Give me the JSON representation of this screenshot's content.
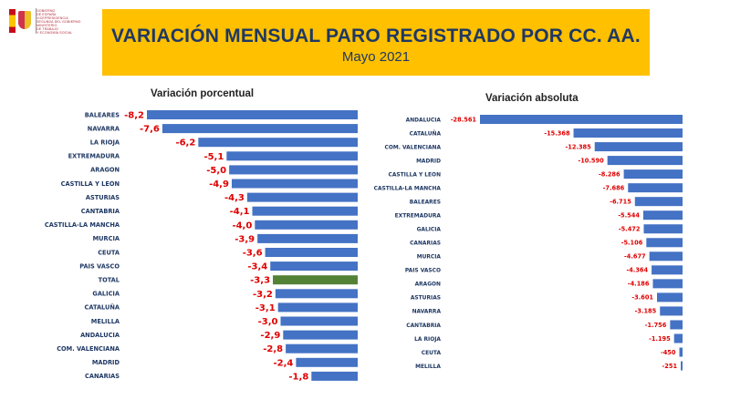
{
  "header": {
    "title": "VARIACIÓN MENSUAL PARO REGISTRADO POR CC. AA.",
    "subtitle": "Mayo 2021",
    "logo_lines": [
      "GOBIERNO",
      "DE ESPAÑA",
      "VICEPRESIDENCIA",
      "SEGUNDA DEL GOBIERNO",
      "MINISTERIO",
      "DE TRABAJO",
      "Y ECONOMÍA SOCIAL"
    ]
  },
  "colors": {
    "banner": "#ffc000",
    "bar": "#4472c4",
    "highlight": "#548235",
    "value_label": "#e00000",
    "category_label": "#1f3864"
  },
  "chart_data": [
    {
      "type": "bar",
      "orientation": "horizontal",
      "title": "Variación porcentual",
      "highlight_category": "TOTAL",
      "categories": [
        "BALEARES",
        "NAVARRA",
        "LA RIOJA",
        "EXTREMADURA",
        "ARAGON",
        "CASTILLA Y LEON",
        "ASTURIAS",
        "CANTABRIA",
        "CASTILLA-LA MANCHA",
        "MURCIA",
        "CEUTA",
        "PAIS VASCO",
        "TOTAL",
        "GALICIA",
        "CATALUÑA",
        "MELILLA",
        "ANDALUCIA",
        "COM. VALENCIANA",
        "MADRID",
        "CANARIAS"
      ],
      "values": [
        -8.2,
        -7.6,
        -6.2,
        -5.1,
        -5.0,
        -4.9,
        -4.3,
        -4.1,
        -4.0,
        -3.9,
        -3.6,
        -3.4,
        -3.3,
        -3.2,
        -3.1,
        -3.0,
        -2.9,
        -2.8,
        -2.4,
        -1.8
      ],
      "value_labels": [
        "-8,2",
        "-7,6",
        "-6,2",
        "-5,1",
        "-5,0",
        "-4,9",
        "-4,3",
        "-4,1",
        "-4,0",
        "-3,9",
        "-3,6",
        "-3,4",
        "-3,3",
        "-3,2",
        "-3,1",
        "-3,0",
        "-2,9",
        "-2,8",
        "-2,4",
        "-1,8"
      ]
    },
    {
      "type": "bar",
      "orientation": "horizontal",
      "title": "Variación absoluta",
      "categories": [
        "ANDALUCIA",
        "CATALUÑA",
        "COM. VALENCIANA",
        "MADRID",
        "CASTILLA Y LEON",
        "CASTILLA-LA MANCHA",
        "BALEARES",
        "EXTREMADURA",
        "GALICIA",
        "CANARIAS",
        "MURCIA",
        "PAIS VASCO",
        "ARAGON",
        "ASTURIAS",
        "NAVARRA",
        "CANTABRIA",
        "LA RIOJA",
        "CEUTA",
        "MELILLA"
      ],
      "values": [
        -28561,
        -15368,
        -12385,
        -10590,
        -8286,
        -7686,
        -6715,
        -5544,
        -5472,
        -5106,
        -4677,
        -4364,
        -4186,
        -3601,
        -3185,
        -1756,
        -1195,
        -450,
        -251
      ],
      "value_labels": [
        "-28.561",
        "-15.368",
        "-12.385",
        "-10.590",
        "-8.286",
        "-7.686",
        "-6.715",
        "-5.544",
        "-5.472",
        "-5.106",
        "-4.677",
        "-4.364",
        "-4.186",
        "-3.601",
        "-3.185",
        "-1.756",
        "-1.195",
        "-450",
        "-251"
      ]
    }
  ]
}
